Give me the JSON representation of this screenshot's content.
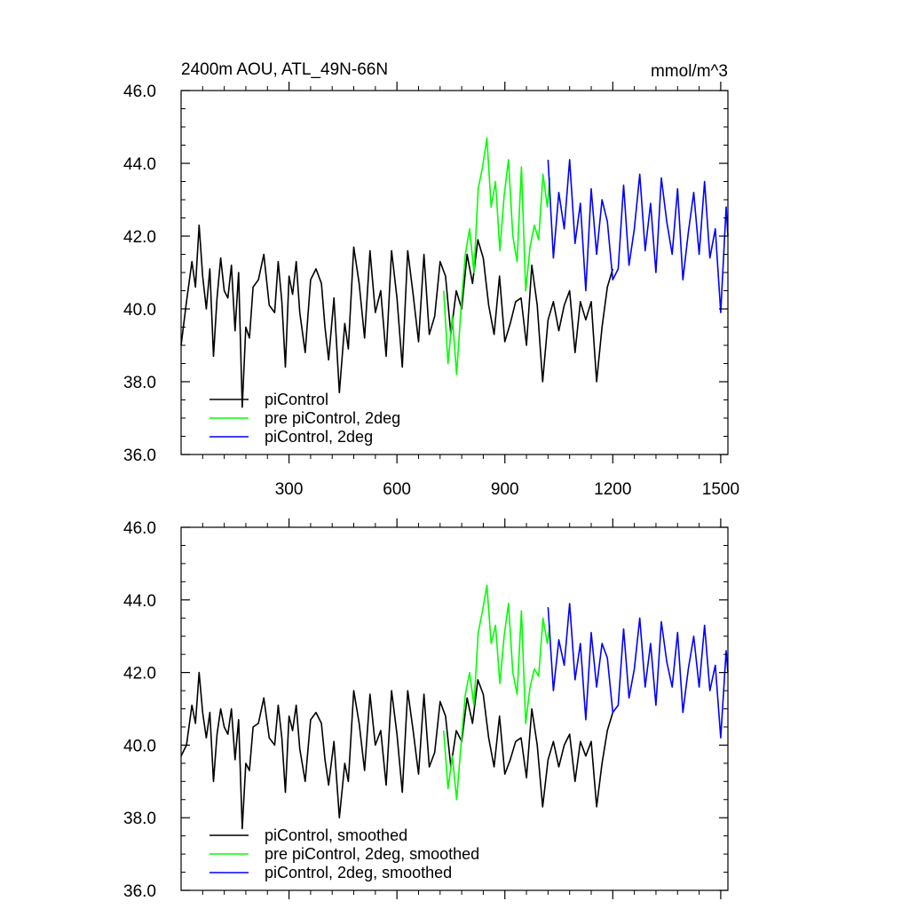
{
  "chart_data": [
    {
      "type": "line",
      "title_left": "2400m AOU, ATL_49N-66N",
      "title_right": "mmol/m^3",
      "xlim": [
        0,
        1520
      ],
      "ylim": [
        36.0,
        46.0
      ],
      "xticks": [
        300,
        600,
        900,
        1200,
        1500
      ],
      "xtick_labels": [
        "300",
        "600",
        "900",
        "1200",
        "1500"
      ],
      "yticks": [
        36.0,
        38.0,
        40.0,
        42.0,
        44.0,
        46.0
      ],
      "ytick_labels": [
        "36.0",
        "38.0",
        "40.0",
        "42.0",
        "44.0",
        "46.0"
      ],
      "grid": false,
      "legend_position": "bottom-left",
      "series": [
        {
          "name": "piControl",
          "color": "#000000",
          "x": [
            0,
            15,
            30,
            40,
            50,
            60,
            70,
            80,
            90,
            100,
            110,
            120,
            130,
            140,
            150,
            160,
            170,
            180,
            190,
            200,
            215,
            230,
            245,
            260,
            270,
            280,
            290,
            300,
            310,
            320,
            330,
            345,
            360,
            375,
            390,
            400,
            410,
            425,
            440,
            455,
            465,
            480,
            495,
            510,
            525,
            540,
            555,
            570,
            585,
            600,
            615,
            630,
            645,
            660,
            675,
            690,
            705,
            720,
            735,
            750,
            765,
            780,
            795,
            810,
            825,
            840,
            855,
            870,
            885,
            900,
            915,
            930,
            945,
            960,
            975,
            990,
            1005,
            1020,
            1035,
            1050,
            1065,
            1080,
            1095,
            1110,
            1125,
            1140,
            1155,
            1170,
            1185,
            1200
          ],
          "values": [
            39.0,
            40.2,
            41.3,
            40.6,
            42.3,
            40.9,
            40.0,
            41.1,
            38.7,
            40.3,
            41.4,
            40.5,
            40.3,
            41.2,
            39.4,
            41.0,
            37.3,
            39.5,
            39.2,
            40.6,
            40.8,
            41.5,
            40.1,
            39.9,
            41.3,
            40.2,
            38.4,
            40.9,
            40.4,
            41.3,
            39.9,
            38.8,
            40.8,
            41.1,
            40.7,
            39.5,
            38.6,
            40.3,
            37.7,
            39.6,
            38.9,
            41.7,
            40.7,
            39.2,
            41.6,
            39.9,
            40.5,
            38.7,
            41.6,
            40.3,
            38.4,
            41.6,
            40.4,
            39.1,
            41.5,
            39.3,
            39.8,
            41.3,
            40.9,
            39.3,
            40.5,
            40.0,
            41.5,
            40.7,
            41.9,
            41.4,
            40.1,
            39.3,
            40.9,
            39.1,
            39.6,
            40.2,
            40.3,
            39.0,
            41.2,
            40.1,
            38.0,
            39.7,
            40.2,
            39.4,
            40.1,
            40.5,
            38.8,
            40.2,
            39.7,
            40.2,
            38.0,
            39.5,
            40.6,
            41.1
          ]
        },
        {
          "name": "pre piControl, 2deg",
          "color": "#00ff00",
          "x": [
            730,
            742,
            754,
            766,
            778,
            790,
            802,
            814,
            826,
            838,
            850,
            862,
            874,
            886,
            898,
            910,
            922,
            934,
            946,
            958,
            970,
            982,
            994,
            1006,
            1018,
            1025
          ],
          "values": [
            40.5,
            38.5,
            39.8,
            38.2,
            40.0,
            41.5,
            42.2,
            41.0,
            43.3,
            43.9,
            44.7,
            42.8,
            43.5,
            41.6,
            43.1,
            44.1,
            42.0,
            41.3,
            43.9,
            40.5,
            41.7,
            42.3,
            41.9,
            43.7,
            42.8,
            43.6
          ],
          "note_values_estimated": true
        },
        {
          "name": "piControl, 2deg",
          "color": "#0000ff",
          "x": [
            1020,
            1035,
            1050,
            1065,
            1080,
            1095,
            1110,
            1125,
            1140,
            1155,
            1170,
            1185,
            1200,
            1215,
            1230,
            1245,
            1260,
            1275,
            1290,
            1305,
            1320,
            1335,
            1350,
            1365,
            1380,
            1395,
            1410,
            1425,
            1440,
            1455,
            1470,
            1485,
            1500,
            1515,
            1520
          ],
          "values": [
            44.1,
            41.4,
            43.2,
            42.2,
            44.1,
            41.8,
            42.9,
            40.5,
            43.3,
            41.5,
            43.0,
            42.4,
            40.8,
            41.1,
            43.4,
            41.2,
            42.2,
            43.7,
            41.6,
            42.9,
            41.0,
            43.6,
            42.4,
            41.5,
            43.3,
            40.8,
            42.1,
            43.2,
            41.5,
            43.5,
            41.4,
            42.2,
            39.9,
            42.8,
            42.0
          ],
          "note_values_estimated": true
        }
      ]
    },
    {
      "type": "line",
      "xlim": [
        0,
        1520
      ],
      "ylim": [
        36.0,
        46.0
      ],
      "xticks": [
        300,
        600,
        900,
        1200,
        1500
      ],
      "yticks": [
        36.0,
        38.0,
        40.0,
        42.0,
        44.0,
        46.0
      ],
      "ytick_labels": [
        "36.0",
        "38.0",
        "40.0",
        "42.0",
        "44.0",
        "46.0"
      ],
      "grid": false,
      "legend_position": "bottom-left",
      "series": [
        {
          "name": "piControl, smoothed",
          "color": "#000000",
          "x": [
            0,
            15,
            30,
            40,
            50,
            60,
            70,
            80,
            90,
            100,
            110,
            120,
            130,
            140,
            150,
            160,
            170,
            180,
            190,
            200,
            215,
            230,
            245,
            260,
            270,
            280,
            290,
            300,
            310,
            320,
            330,
            345,
            360,
            375,
            390,
            400,
            410,
            425,
            440,
            455,
            465,
            480,
            495,
            510,
            525,
            540,
            555,
            570,
            585,
            600,
            615,
            630,
            645,
            660,
            675,
            690,
            705,
            720,
            735,
            750,
            765,
            780,
            795,
            810,
            825,
            840,
            855,
            870,
            885,
            900,
            915,
            930,
            945,
            960,
            975,
            990,
            1005,
            1020,
            1035,
            1050,
            1065,
            1080,
            1095,
            1110,
            1125,
            1140,
            1155,
            1170,
            1185,
            1200
          ],
          "values": [
            39.7,
            40.0,
            41.1,
            40.6,
            42.0,
            40.9,
            40.2,
            40.9,
            39.0,
            40.3,
            41.0,
            40.5,
            40.3,
            41.0,
            39.6,
            40.7,
            37.7,
            39.5,
            39.3,
            40.5,
            40.6,
            41.3,
            40.2,
            40.0,
            41.1,
            40.2,
            38.7,
            40.8,
            40.4,
            41.1,
            39.9,
            39.0,
            40.7,
            40.9,
            40.6,
            39.6,
            38.9,
            40.1,
            38.0,
            39.5,
            39.0,
            41.5,
            40.6,
            39.3,
            41.4,
            40.0,
            40.4,
            38.9,
            41.5,
            40.3,
            38.7,
            41.5,
            40.4,
            39.2,
            41.4,
            39.4,
            39.8,
            41.2,
            40.8,
            39.4,
            40.4,
            40.1,
            41.3,
            40.6,
            41.8,
            41.4,
            40.2,
            39.4,
            40.8,
            39.2,
            39.6,
            40.1,
            40.2,
            39.1,
            41.0,
            40.0,
            38.3,
            39.6,
            40.1,
            39.4,
            40.0,
            40.3,
            39.0,
            40.1,
            39.7,
            40.1,
            38.3,
            39.5,
            40.4,
            40.9
          ]
        },
        {
          "name": "pre piControl, 2deg, smoothed",
          "color": "#00ff00",
          "x": [
            730,
            742,
            754,
            766,
            778,
            790,
            802,
            814,
            826,
            838,
            850,
            862,
            874,
            886,
            898,
            910,
            922,
            934,
            946,
            958,
            970,
            982,
            994,
            1006,
            1018,
            1025
          ],
          "values": [
            40.4,
            38.8,
            39.7,
            38.5,
            40.0,
            41.4,
            42.0,
            41.1,
            43.1,
            43.7,
            44.4,
            42.8,
            43.3,
            41.7,
            43.0,
            43.9,
            42.0,
            41.4,
            43.7,
            40.6,
            41.6,
            42.1,
            41.9,
            43.5,
            42.8,
            43.3
          ],
          "note_values_estimated": true
        },
        {
          "name": "piControl, 2deg, smoothed",
          "color": "#0000ff",
          "x": [
            1020,
            1035,
            1050,
            1065,
            1080,
            1095,
            1110,
            1125,
            1140,
            1155,
            1170,
            1185,
            1200,
            1215,
            1230,
            1245,
            1260,
            1275,
            1290,
            1305,
            1320,
            1335,
            1350,
            1365,
            1380,
            1395,
            1410,
            1425,
            1440,
            1455,
            1470,
            1485,
            1500,
            1515,
            1520
          ],
          "values": [
            43.8,
            41.5,
            42.9,
            42.2,
            43.9,
            41.8,
            42.8,
            40.7,
            43.1,
            41.6,
            42.8,
            42.4,
            40.9,
            41.1,
            43.2,
            41.3,
            42.1,
            43.5,
            41.6,
            42.8,
            41.1,
            43.4,
            42.3,
            41.6,
            43.1,
            40.9,
            42.1,
            43.0,
            41.6,
            43.3,
            41.5,
            42.2,
            40.2,
            42.6,
            42.0
          ],
          "note_values_estimated": true
        }
      ]
    }
  ]
}
